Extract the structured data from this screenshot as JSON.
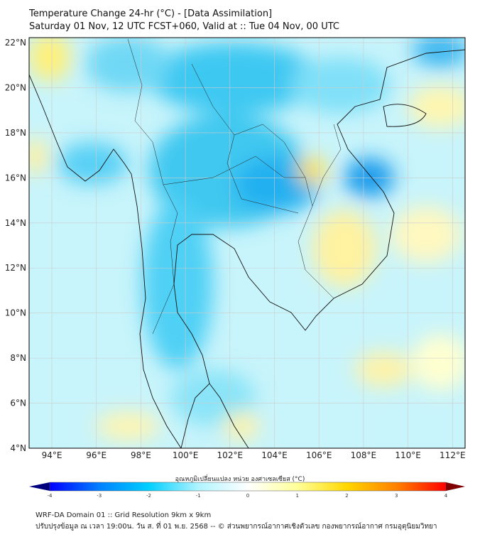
{
  "title": {
    "line1": "Temperature Change 24-hr (°C) - [Data Assimilation]",
    "line2": "Saturday 01 Nov, 12 UTC FCST+060, Valid at :: Tue 04 Nov, 00 UTC"
  },
  "map": {
    "lat_labels": [
      "22°N",
      "20°N",
      "18°N",
      "16°N",
      "14°N",
      "12°N",
      "10°N",
      "8°N",
      "6°N",
      "4°N"
    ],
    "lon_labels": [
      "94°E",
      "96°E",
      "98°E",
      "100°E",
      "102°E",
      "104°E",
      "106°E",
      "108°E",
      "110°E",
      "112°E"
    ]
  },
  "colorbar": {
    "title": "อุณหภูมิเปลี่ยนแปลง หน่วย องศาเซลเซียส (°C)",
    "ticks": [
      "-4",
      "-3",
      "-2",
      "-1",
      "0",
      "1",
      "2",
      "3",
      "4"
    ],
    "colors": [
      "#00007f",
      "#0000ff",
      "#0080ff",
      "#00d0ff",
      "#b0f4ff",
      "#ffffff",
      "#ffff99",
      "#ffd700",
      "#ff8000",
      "#ff0000",
      "#7f0000"
    ]
  },
  "footer": {
    "line1": "WRF-DA Domain 01 :: Grid Resolution 9km x 9km",
    "line2": "ปรับปรุงข้อมูล ณ เวลา 19:00น. วัน ส. ที่ 01 พ.ย. 2568 -- © ส่วนพยากรณ์อากาศเชิงตัวเลข กองพยากรณ์อากาศ กรมอุตุนิยมวิทยา"
  }
}
